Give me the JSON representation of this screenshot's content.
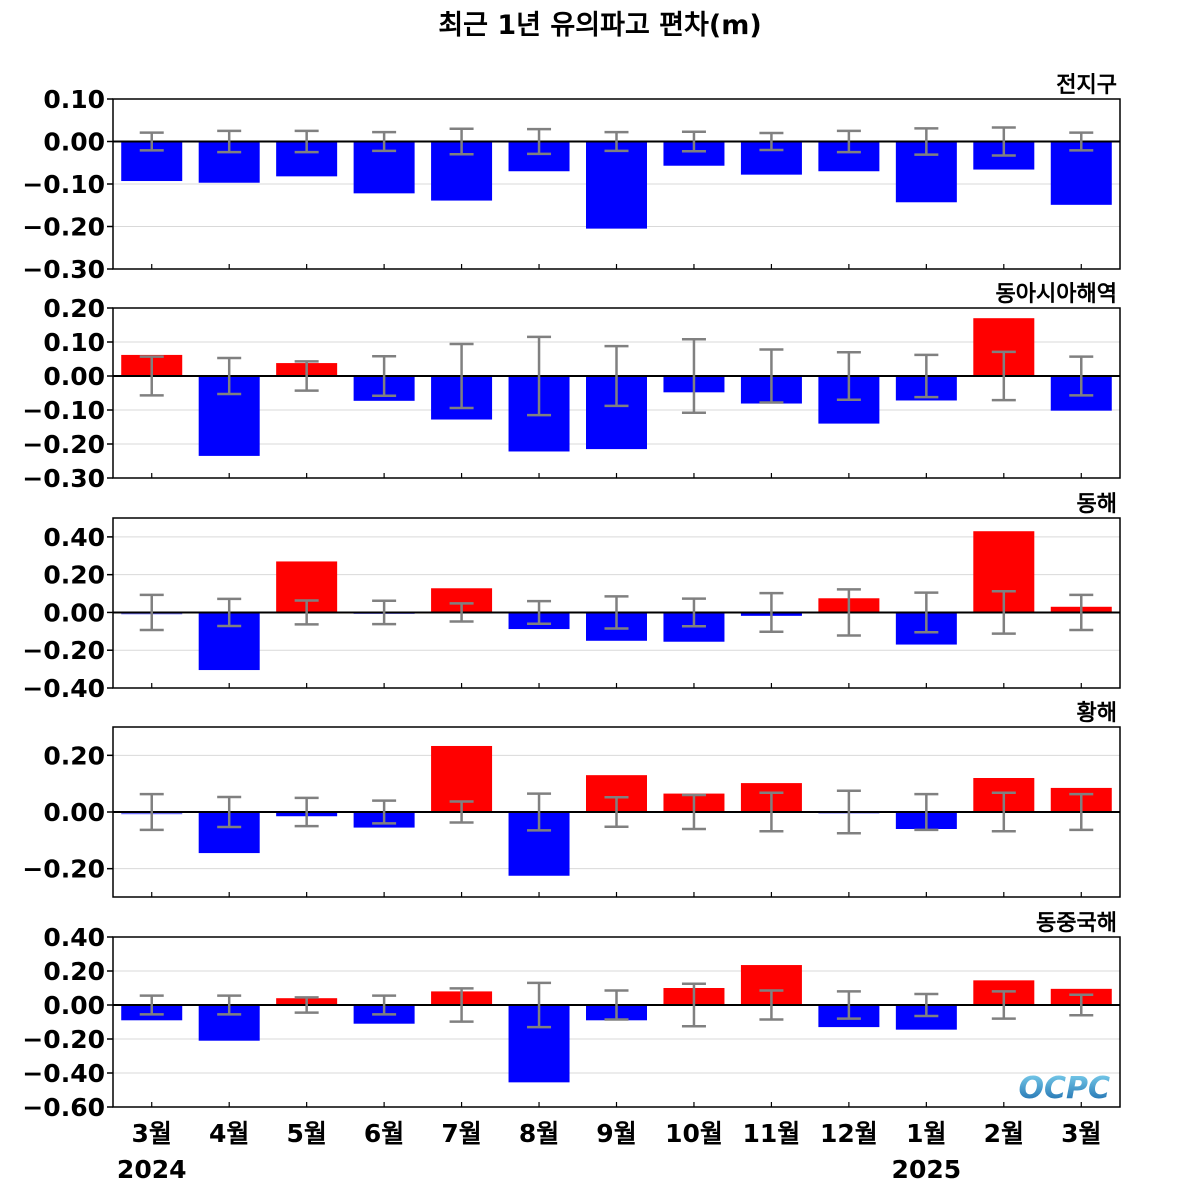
{
  "title": "최근 1년 유의파고 편차(m)",
  "years": [
    {
      "label": "2024",
      "index": 0
    },
    {
      "label": "2025",
      "index": 10
    }
  ],
  "logo": {
    "text": "OCPC"
  },
  "colors": {
    "positive": "#ff0000",
    "negative": "#0000ff",
    "error_bar": "#808080",
    "zero_line": "#000000",
    "grid": "#d9d9d9"
  },
  "chart_data": [
    {
      "type": "bar",
      "title": "전지구",
      "categories": [
        "3월",
        "4월",
        "5월",
        "6월",
        "7월",
        "8월",
        "9월",
        "10월",
        "11월",
        "12월",
        "1월",
        "2월",
        "3월"
      ],
      "values": [
        -0.093,
        -0.097,
        -0.082,
        -0.122,
        -0.139,
        -0.07,
        -0.205,
        -0.057,
        -0.078,
        -0.07,
        -0.143,
        -0.066,
        -0.149
      ],
      "error": [
        0.021,
        0.025,
        0.025,
        0.022,
        0.03,
        0.029,
        0.022,
        0.023,
        0.02,
        0.025,
        0.031,
        0.033,
        0.021
      ],
      "ylim": [
        -0.3,
        0.1
      ],
      "yticks": [
        0.1,
        0.0,
        -0.1,
        -0.2,
        -0.3
      ],
      "ytick_labels": [
        "0.10",
        "0.00",
        "−0.10",
        "−0.20",
        "−0.30"
      ],
      "grid": true
    },
    {
      "type": "bar",
      "title": "동아시아해역",
      "categories": [
        "3월",
        "4월",
        "5월",
        "6월",
        "7월",
        "8월",
        "9월",
        "10월",
        "11월",
        "12월",
        "1월",
        "2월",
        "3월"
      ],
      "values": [
        0.062,
        -0.235,
        0.038,
        -0.073,
        -0.128,
        -0.222,
        -0.215,
        -0.048,
        -0.081,
        -0.14,
        -0.072,
        0.17,
        -0.102
      ],
      "error": [
        0.057,
        0.053,
        0.043,
        0.058,
        0.094,
        0.115,
        0.088,
        0.108,
        0.078,
        0.07,
        0.062,
        0.071,
        0.057
      ],
      "ylim": [
        -0.3,
        0.2
      ],
      "yticks": [
        0.2,
        0.1,
        0.0,
        -0.1,
        -0.2,
        -0.3
      ],
      "ytick_labels": [
        "0.20",
        "0.10",
        "0.00",
        "−0.10",
        "−0.20",
        "−0.30"
      ],
      "grid": true
    },
    {
      "type": "bar",
      "title": "동해",
      "categories": [
        "3월",
        "4월",
        "5월",
        "6월",
        "7월",
        "8월",
        "9월",
        "10월",
        "11월",
        "12월",
        "1월",
        "2월",
        "3월"
      ],
      "values": [
        -0.01,
        -0.305,
        0.27,
        -0.008,
        0.128,
        -0.088,
        -0.15,
        -0.155,
        -0.018,
        0.075,
        -0.17,
        0.43,
        0.03
      ],
      "error": [
        0.093,
        0.072,
        0.063,
        0.062,
        0.048,
        0.06,
        0.085,
        0.073,
        0.102,
        0.122,
        0.105,
        0.112,
        0.093
      ],
      "ylim": [
        -0.4,
        0.5
      ],
      "yticks": [
        0.4,
        0.2,
        0.0,
        -0.2,
        -0.4
      ],
      "ytick_labels": [
        "0.40",
        "0.20",
        "0.00",
        "−0.20",
        "−0.40"
      ],
      "grid": true
    },
    {
      "type": "bar",
      "title": "황해",
      "categories": [
        "3월",
        "4월",
        "5월",
        "6월",
        "7월",
        "8월",
        "9월",
        "10월",
        "11월",
        "12월",
        "1월",
        "2월",
        "3월"
      ],
      "values": [
        -0.008,
        -0.145,
        -0.015,
        -0.055,
        0.233,
        -0.225,
        0.13,
        0.065,
        0.102,
        -0.003,
        -0.06,
        0.12,
        0.085
      ],
      "error": [
        0.063,
        0.053,
        0.05,
        0.04,
        0.037,
        0.065,
        0.052,
        0.06,
        0.068,
        0.075,
        0.063,
        0.068,
        0.063
      ],
      "ylim": [
        -0.3,
        0.3
      ],
      "yticks": [
        0.2,
        0.0,
        -0.2
      ],
      "ytick_labels": [
        "0.20",
        "0.00",
        "−0.20"
      ],
      "grid": true
    },
    {
      "type": "bar",
      "title": "동중국해",
      "categories": [
        "3월",
        "4월",
        "5월",
        "6월",
        "7월",
        "8월",
        "9월",
        "10월",
        "11월",
        "12월",
        "1월",
        "2월",
        "3월"
      ],
      "values": [
        -0.09,
        -0.21,
        0.04,
        -0.11,
        0.08,
        -0.455,
        -0.09,
        0.1,
        0.235,
        -0.13,
        -0.145,
        0.145,
        0.095
      ],
      "error": [
        0.055,
        0.055,
        0.045,
        0.055,
        0.098,
        0.13,
        0.085,
        0.125,
        0.085,
        0.08,
        0.065,
        0.08,
        0.06
      ],
      "ylim": [
        -0.6,
        0.4
      ],
      "yticks": [
        0.4,
        0.2,
        0.0,
        -0.2,
        -0.4,
        -0.6
      ],
      "ytick_labels": [
        "0.40",
        "0.20",
        "0.00",
        "−0.20",
        "−0.40",
        "−0.60"
      ],
      "grid": true
    }
  ]
}
